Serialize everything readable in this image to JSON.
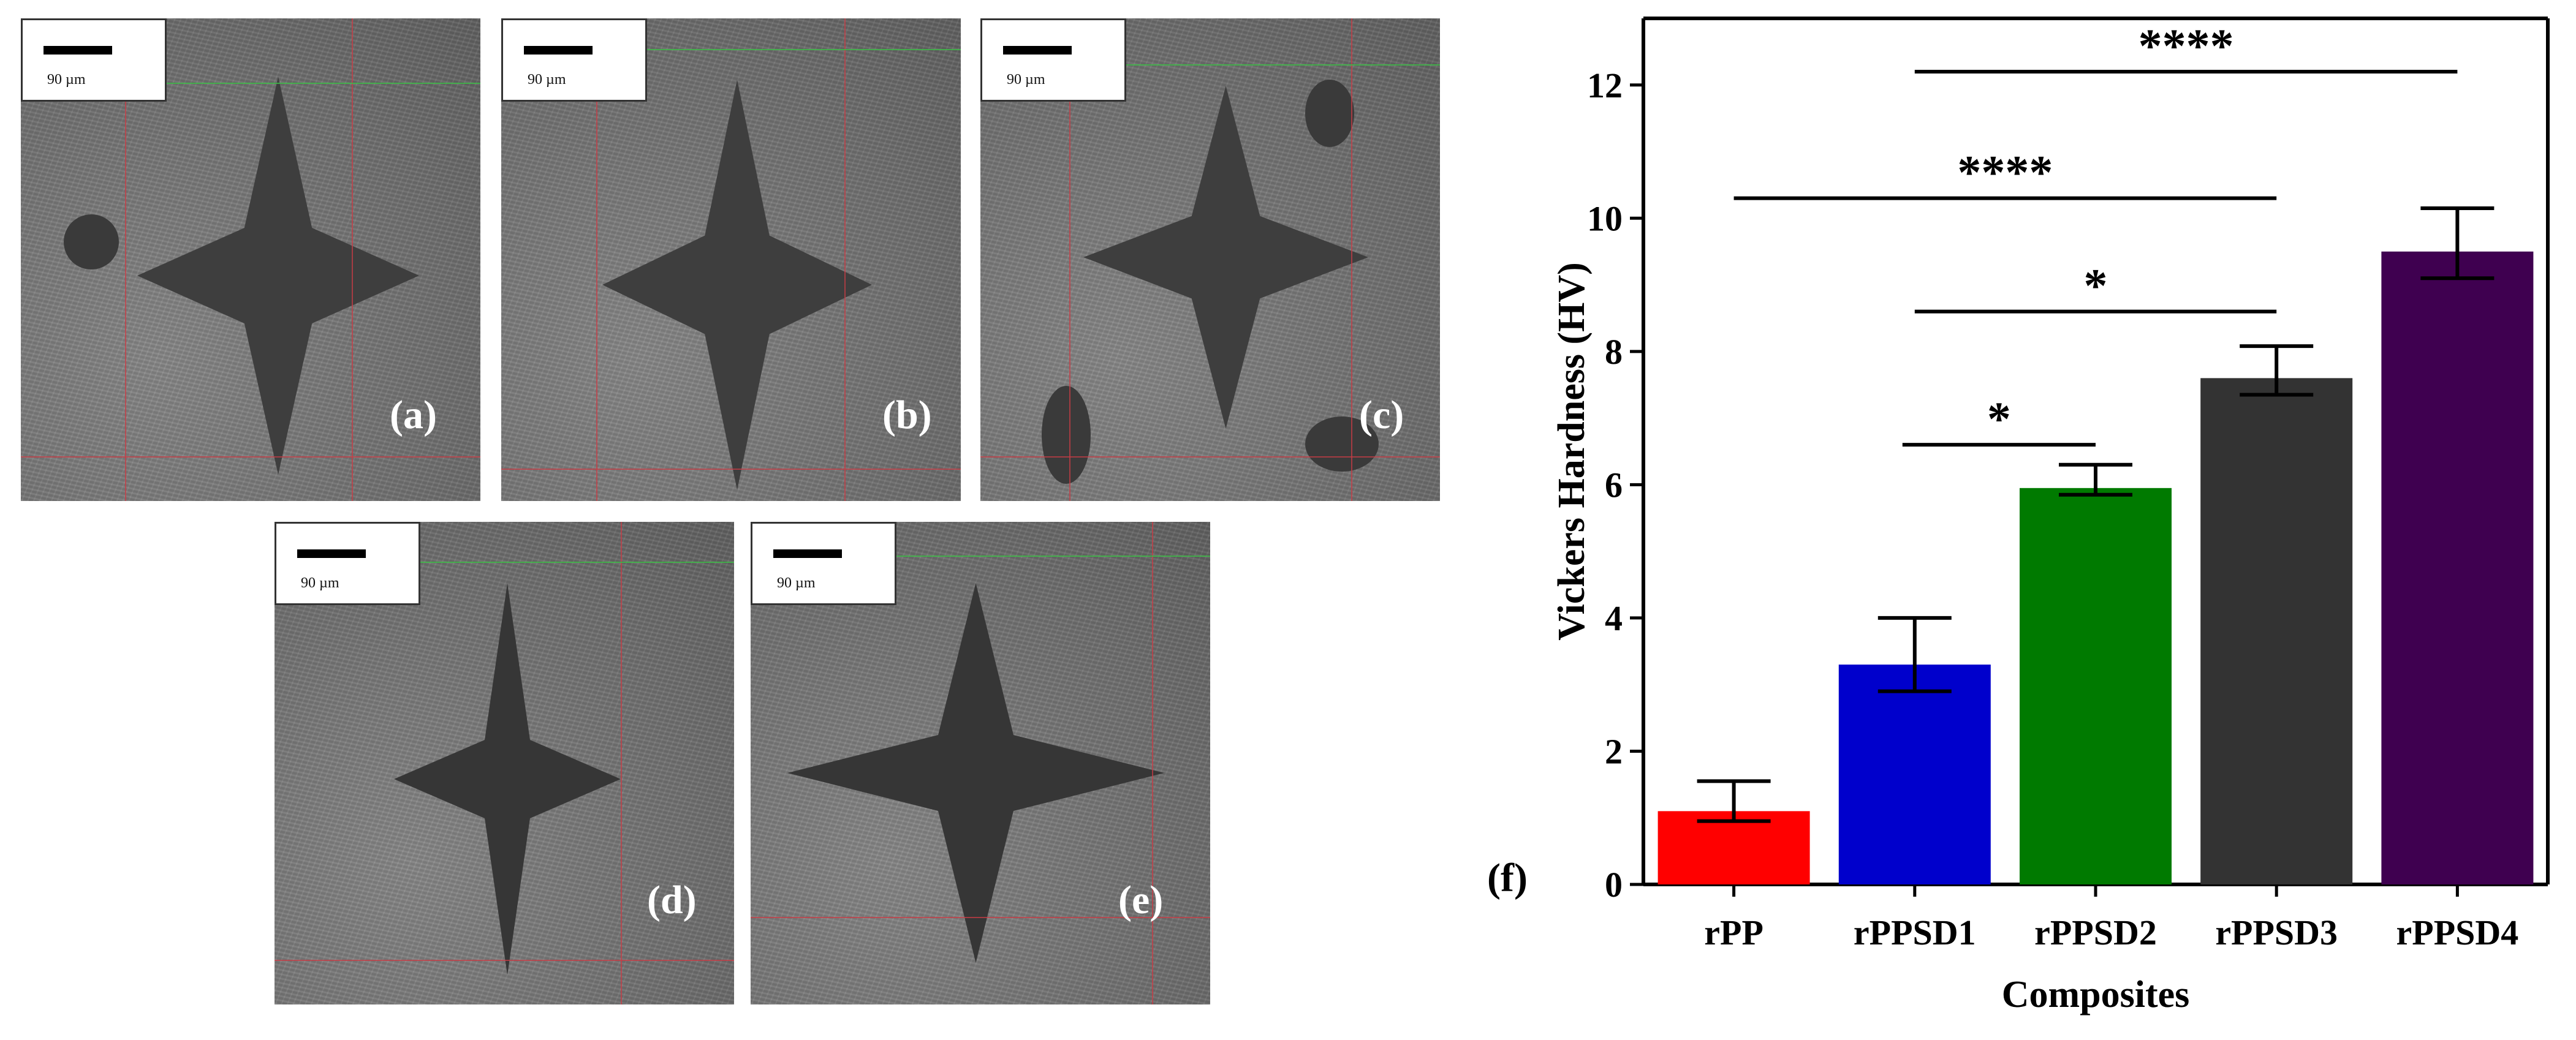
{
  "panels": [
    {
      "id": "a",
      "label": "(a)",
      "scale_text": "90 µm"
    },
    {
      "id": "b",
      "label": "(b)",
      "scale_text": "90 µm"
    },
    {
      "id": "c",
      "label": "(c)",
      "scale_text": "90 µm"
    },
    {
      "id": "d",
      "label": "(d)",
      "scale_text": "90 µm"
    },
    {
      "id": "e",
      "label": "(e)",
      "scale_text": "90 µm"
    }
  ],
  "chart_panel_label": "(f)",
  "chart_data": {
    "type": "bar",
    "categories": [
      "rPP",
      "rPPSD1",
      "rPPSD2",
      "rPPSD3",
      "rPPSD4"
    ],
    "values": [
      1.1,
      3.3,
      5.95,
      7.6,
      9.5
    ],
    "error_upper": [
      1.55,
      4.0,
      6.3,
      8.08,
      10.15
    ],
    "error_lower": [
      0.95,
      2.9,
      5.85,
      7.35,
      9.1
    ],
    "colors": [
      "#ff0000",
      "#0000cc",
      "#007a00",
      "#333333",
      "#3f0050"
    ],
    "xlabel": "Composites",
    "ylabel": "Vickers Hardness (HV)",
    "ylim": [
      0,
      13
    ],
    "yticks": [
      0,
      2,
      4,
      6,
      8,
      10,
      12
    ],
    "significance": [
      {
        "from": "rPPSD1",
        "to": "rPPSD4",
        "level": 12.2,
        "label": "****"
      },
      {
        "from": "rPP",
        "to": "rPPSD3",
        "level": 10.3,
        "label": "****"
      },
      {
        "from": "rPPSD1",
        "to": "rPPSD3",
        "level": 8.6,
        "label": "*"
      },
      {
        "from": "rPPSD1",
        "to": "rPPSD2",
        "level": 6.6,
        "label": "*"
      }
    ]
  }
}
